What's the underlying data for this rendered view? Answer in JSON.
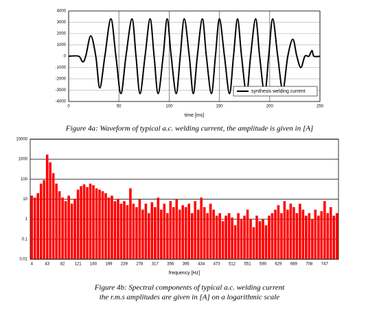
{
  "chart_data": [
    {
      "type": "line",
      "xlabel": "time [ms]",
      "x": [
        0,
        10,
        14,
        17,
        22,
        27,
        31,
        36,
        42,
        47,
        52,
        57,
        63,
        67,
        71,
        76,
        81,
        85,
        89,
        94,
        98,
        102,
        107,
        111,
        115,
        120,
        124,
        128,
        133,
        137,
        142,
        146,
        150,
        155,
        160,
        164,
        168,
        172,
        177,
        181,
        186,
        190,
        195,
        199,
        203,
        208,
        213,
        218,
        223,
        227,
        231,
        235,
        239,
        242,
        244,
        250
      ],
      "series": [
        {
          "name": "synthesis welding current",
          "color": "#000000",
          "values": [
            0,
            0,
            -500,
            0,
            1800,
            0,
            -2800,
            0,
            3300,
            0,
            -3300,
            0,
            3300,
            0,
            -3300,
            0,
            3300,
            0,
            -3300,
            0,
            3300,
            0,
            -3300,
            0,
            3300,
            0,
            -3300,
            0,
            3300,
            0,
            -3300,
            0,
            3300,
            0,
            -3300,
            0,
            3300,
            0,
            -3300,
            0,
            3300,
            0,
            -3300,
            0,
            3300,
            0,
            -3000,
            0,
            1500,
            0,
            -1000,
            0,
            0,
            500,
            0,
            0
          ]
        }
      ],
      "xlim": [
        0,
        250
      ],
      "xticks": [
        0,
        50,
        100,
        150,
        200,
        250
      ],
      "ylim": [
        -4000,
        4000
      ],
      "yticks": [
        -4000,
        -3000,
        -2000,
        -1000,
        0,
        1000,
        2000,
        3000,
        4000
      ],
      "grid": true,
      "legend": "lower right"
    },
    {
      "type": "bar",
      "xlabel": "frequency [Hz]",
      "color": "#ff0000",
      "log_scale": true,
      "categories": [
        "4",
        null,
        null,
        null,
        null,
        "43",
        null,
        null,
        null,
        null,
        "82",
        null,
        null,
        null,
        null,
        "121",
        null,
        null,
        null,
        null,
        "160",
        null,
        null,
        null,
        null,
        "199",
        null,
        null,
        null,
        null,
        "239",
        null,
        null,
        null,
        null,
        "278",
        null,
        null,
        null,
        null,
        "317",
        null,
        null,
        null,
        null,
        "356",
        null,
        null,
        null,
        null,
        "395",
        null,
        null,
        null,
        null,
        "434",
        null,
        null,
        null,
        null,
        "473",
        null,
        null,
        null,
        null,
        "512",
        null,
        null,
        null,
        null,
        "551",
        null,
        null,
        null,
        null,
        "590",
        null,
        null,
        null,
        null,
        "629",
        null,
        null,
        null,
        null,
        "669",
        null,
        null,
        null,
        null,
        "708",
        null,
        null,
        null,
        null,
        "747",
        null,
        null,
        null,
        null
      ],
      "values": [
        15,
        12,
        20,
        60,
        90,
        1700,
        700,
        200,
        60,
        25,
        12,
        8,
        15,
        6,
        10,
        30,
        45,
        55,
        40,
        60,
        50,
        35,
        30,
        25,
        20,
        12,
        15,
        8,
        10,
        6,
        8,
        5,
        35,
        6,
        4,
        10,
        3,
        6,
        2,
        7,
        4,
        12,
        3,
        6,
        2,
        8,
        4,
        10,
        3,
        5,
        4,
        6,
        2,
        8,
        3,
        12,
        4,
        2,
        6,
        3,
        1.5,
        2,
        0.8,
        1.5,
        2,
        1.2,
        0.5,
        2,
        1,
        1.5,
        3,
        1,
        0.4,
        1.5,
        0.8,
        1,
        0.5,
        1.5,
        2,
        3,
        5,
        2,
        8,
        3,
        6,
        4,
        2,
        6,
        3,
        1.5,
        2,
        1,
        3,
        1.5,
        2.5,
        8,
        2,
        4,
        1.5,
        2
      ],
      "ylim": [
        0.01,
        10000
      ],
      "yticks": [
        0.01,
        0.1,
        1,
        10,
        100,
        1000,
        10000
      ],
      "grid": true
    }
  ],
  "captions": [
    "Figure 4a: Waveform of typical a.c. welding current, the amplitude is given in [A]",
    "Figure 4b: Spectral components of typical a.c. welding current",
    "the r.m.s amplitudes are given in [A] on a logarithmic scale"
  ]
}
